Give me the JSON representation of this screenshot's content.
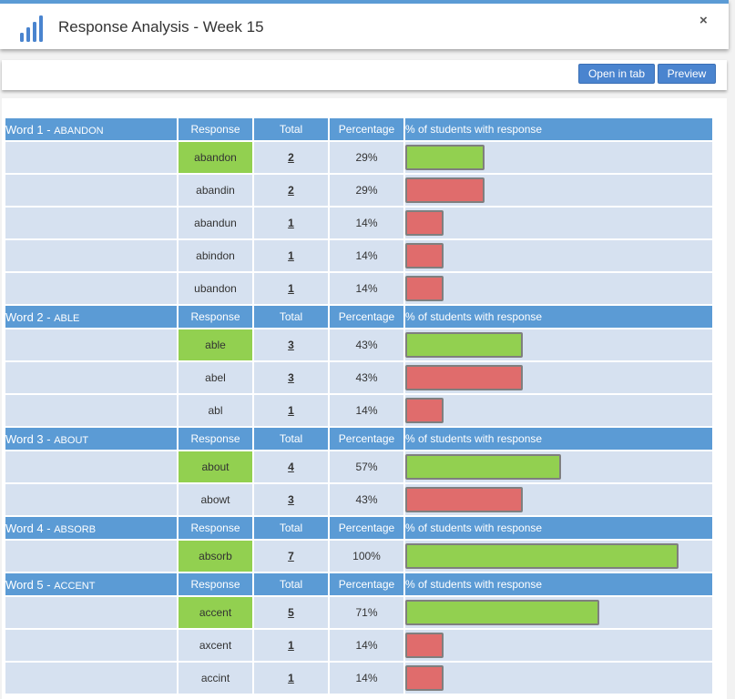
{
  "header": {
    "title": "Response Analysis - Week 15",
    "close_label": "×",
    "logo_icon": "bar-chart-icon"
  },
  "toolbar": {
    "open_label": "Open in tab",
    "preview_label": "Preview"
  },
  "columns": {
    "response": "Response",
    "total": "Total",
    "percentage": "Percentage",
    "students": "% of students with response"
  },
  "colors": {
    "header_blue": "#5b9bd5",
    "correct_green": "#92d050",
    "incorrect_red": "#e06c6c",
    "row_bg": "#d6e1f0"
  },
  "words": [
    {
      "prefix": "Word 1 - ",
      "word": "ABANDON",
      "responses": [
        {
          "response": "abandon",
          "total": "2",
          "percentage": "29%",
          "fraction": 0.29,
          "correct": true
        },
        {
          "response": "abandin",
          "total": "2",
          "percentage": "29%",
          "fraction": 0.29,
          "correct": false
        },
        {
          "response": "abandun",
          "total": "1",
          "percentage": "14%",
          "fraction": 0.14,
          "correct": false
        },
        {
          "response": "abindon",
          "total": "1",
          "percentage": "14%",
          "fraction": 0.14,
          "correct": false
        },
        {
          "response": "ubandon",
          "total": "1",
          "percentage": "14%",
          "fraction": 0.14,
          "correct": false
        }
      ]
    },
    {
      "prefix": "Word 2 - ",
      "word": "ABLE",
      "responses": [
        {
          "response": "able",
          "total": "3",
          "percentage": "43%",
          "fraction": 0.43,
          "correct": true
        },
        {
          "response": "abel",
          "total": "3",
          "percentage": "43%",
          "fraction": 0.43,
          "correct": false
        },
        {
          "response": "abl",
          "total": "1",
          "percentage": "14%",
          "fraction": 0.14,
          "correct": false
        }
      ]
    },
    {
      "prefix": "Word 3 - ",
      "word": "ABOUT",
      "responses": [
        {
          "response": "about",
          "total": "4",
          "percentage": "57%",
          "fraction": 0.57,
          "correct": true
        },
        {
          "response": "abowt",
          "total": "3",
          "percentage": "43%",
          "fraction": 0.43,
          "correct": false
        }
      ]
    },
    {
      "prefix": "Word 4 - ",
      "word": "ABSORB",
      "responses": [
        {
          "response": "absorb",
          "total": "7",
          "percentage": "100%",
          "fraction": 1.0,
          "correct": true
        }
      ]
    },
    {
      "prefix": "Word 5 - ",
      "word": "ACCENT",
      "responses": [
        {
          "response": "accent",
          "total": "5",
          "percentage": "71%",
          "fraction": 0.71,
          "correct": true
        },
        {
          "response": "axcent",
          "total": "1",
          "percentage": "14%",
          "fraction": 0.14,
          "correct": false
        },
        {
          "response": "accint",
          "total": "1",
          "percentage": "14%",
          "fraction": 0.14,
          "correct": false
        }
      ]
    }
  ]
}
